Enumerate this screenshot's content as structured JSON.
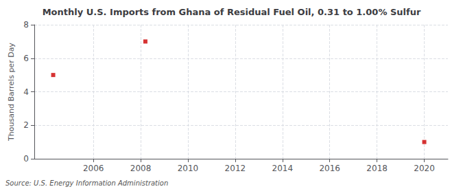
{
  "chart_data": {
    "type": "scatter",
    "title": "Monthly U.S. Imports from Ghana of Residual Fuel Oil, 0.31 to 1.00% Sulfur",
    "ylabel": "Thousand Barrels per Day",
    "annotation": "Source: U.S. Energy Information Administration",
    "x": [
      2004.3,
      2008.2,
      2020.0
    ],
    "values": [
      5.0,
      7.0,
      1.0
    ],
    "color": "#cc0000",
    "marker": "square",
    "xlim": [
      2003.5,
      2021.0
    ],
    "xticks": [
      2006,
      2008,
      2010,
      2012,
      2014,
      2016,
      2018,
      2020
    ],
    "ylim": [
      0,
      8
    ],
    "yticks": [
      0,
      2,
      4,
      6,
      8
    ],
    "grid": true
  }
}
